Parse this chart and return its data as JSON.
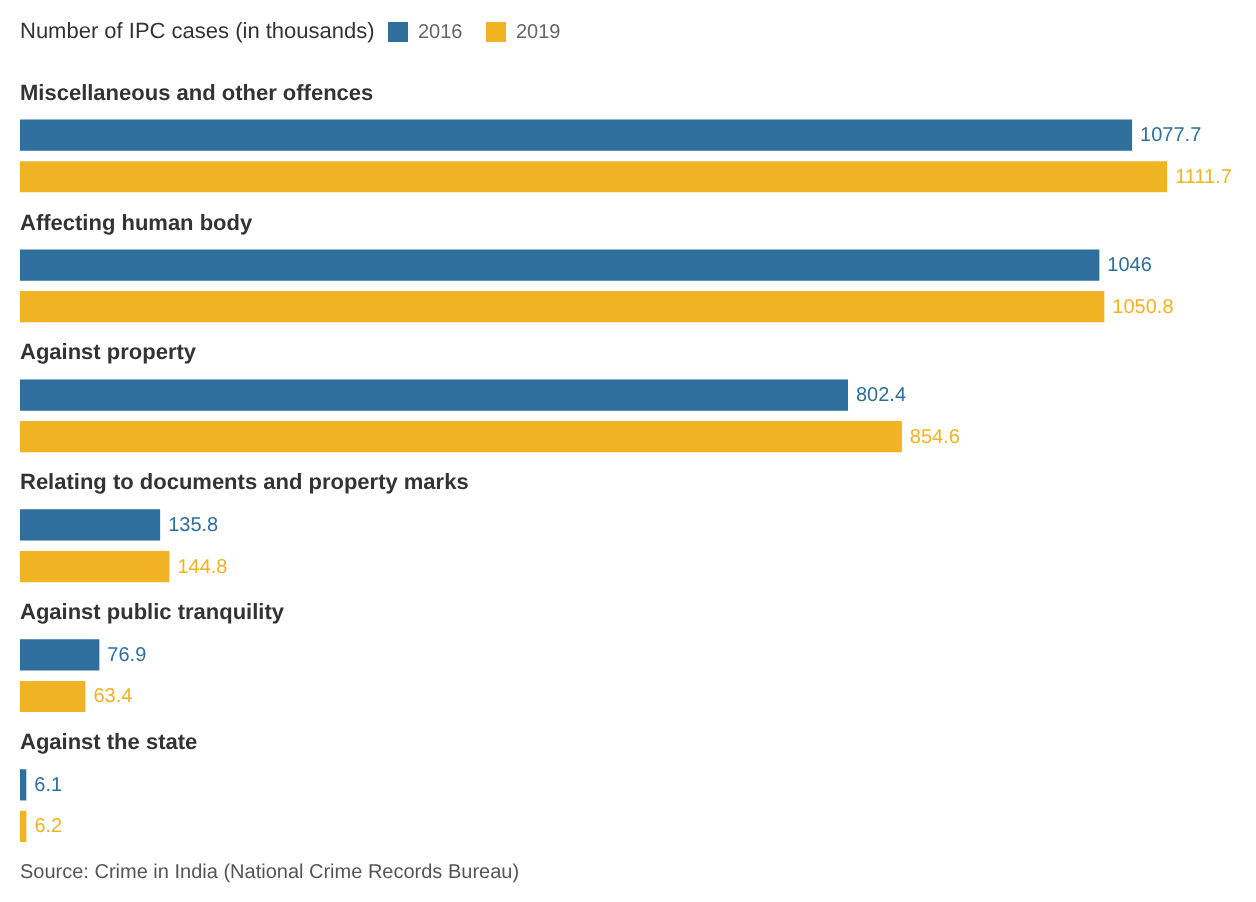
{
  "chart_data": {
    "type": "bar",
    "orientation": "horizontal",
    "legend_title": "Number of IPC cases (in thousands)",
    "legend": "top left",
    "categories": [
      "Miscellaneous and other offences",
      "Affecting human body",
      "Against property",
      "Relating to documents and property marks",
      "Against public tranquility",
      "Against the state"
    ],
    "series": [
      {
        "name": "2016",
        "color": "#2e6f9e",
        "values": [
          1077.7,
          1046,
          802.4,
          135.8,
          76.9,
          6.1
        ]
      },
      {
        "name": "2019",
        "color": "#f0b323",
        "values": [
          1111.7,
          1050.8,
          854.6,
          144.8,
          63.4,
          6.2
        ]
      }
    ],
    "data_labels": true,
    "annotations": [
      "Source: Crime in India (National Crime Records Bureau)"
    ]
  }
}
